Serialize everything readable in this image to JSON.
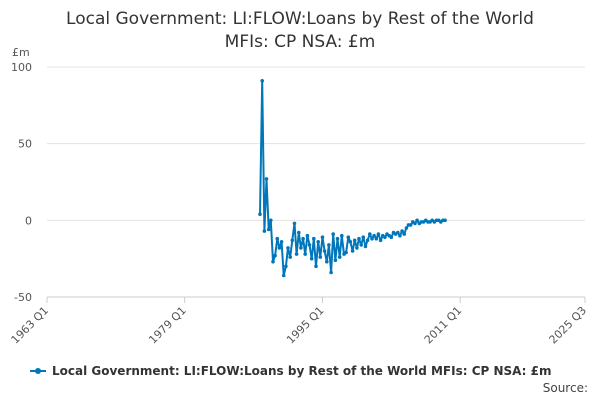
{
  "chart_data": {
    "type": "line",
    "title_lines": [
      "Local Government: LI:FLOW:Loans by Rest of the World",
      "MFIs: CP NSA: £m"
    ],
    "ylabel": "£m",
    "ylim": [
      -50,
      100
    ],
    "yticks": [
      100,
      50,
      0,
      -50
    ],
    "x_range_years": [
      1963.0,
      2025.5
    ],
    "xticks": [
      {
        "label": "1963 Q1",
        "year": 1963.0
      },
      {
        "label": "1979 Q1",
        "year": 1979.0
      },
      {
        "label": "1995 Q1",
        "year": 1995.0
      },
      {
        "label": "2011 Q1",
        "year": 2011.0
      },
      {
        "label": "2025 Q3",
        "year": 2025.5
      }
    ],
    "grid": "horizontal",
    "legend_position": "bottom",
    "color": "#0077bb",
    "series": [
      {
        "name": "Local Government: LI:FLOW:Loans by Rest of the World MFIs: CP NSA: £m",
        "start_year": 1987.75,
        "step_years": 0.25,
        "values": [
          4,
          91,
          -7,
          27,
          -6,
          0,
          -27,
          -23,
          -12,
          -18,
          -14,
          -36,
          -30,
          -18,
          -24,
          -13,
          -2,
          -22,
          -8,
          -18,
          -12,
          -22,
          -10,
          -16,
          -25,
          -12,
          -30,
          -14,
          -24,
          -11,
          -20,
          -27,
          -16,
          -34,
          -9,
          -26,
          -12,
          -24,
          -10,
          -22,
          -21,
          -11,
          -14,
          -20,
          -13,
          -18,
          -12,
          -16,
          -11,
          -17,
          -13,
          -9,
          -12,
          -10,
          -12,
          -9,
          -13,
          -10,
          -11,
          -9,
          -10,
          -11,
          -8,
          -9,
          -8,
          -10,
          -7,
          -9,
          -5,
          -3,
          -3,
          -1,
          -2,
          0,
          -2,
          -1,
          -1,
          0,
          -1,
          -1,
          0,
          -1,
          0,
          0,
          -1,
          0,
          0
        ]
      }
    ]
  },
  "legend": {
    "label": "Local Government: LI:FLOW:Loans by Rest of the World MFIs: CP NSA: £m"
  },
  "source_label": "Source:"
}
